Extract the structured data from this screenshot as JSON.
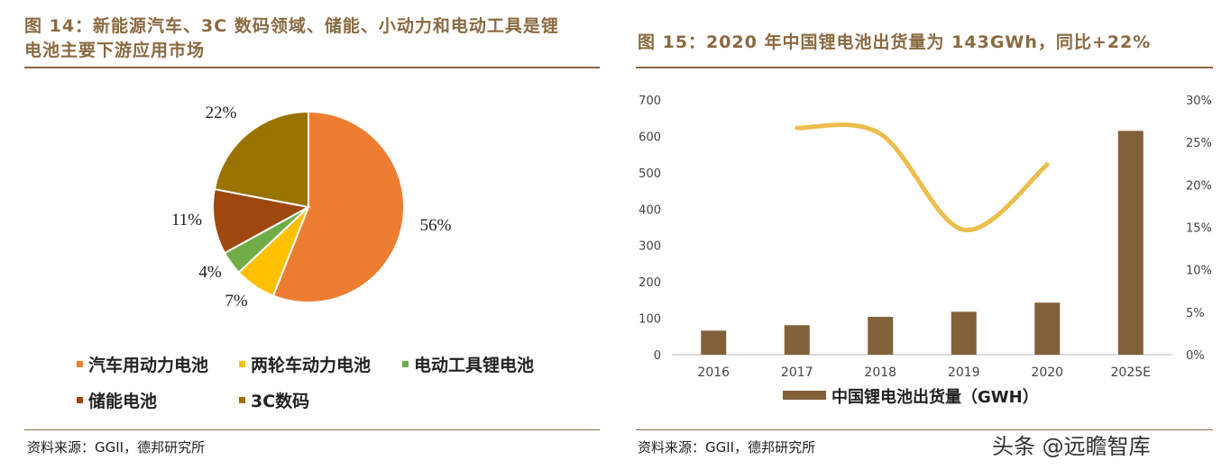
{
  "left": {
    "title_line1": "图 14：新能源汽车、3C 数码领域、储能、小动力和电动工具是锂",
    "title_line2": "电池主要下游应用市场",
    "source": "资料来源：GGII，德邦研究所"
  },
  "right": {
    "title": "图 15：2020 年中国锂电池出货量为 143GWh，同比+22%",
    "source": "资料来源：GGII，德邦研究所"
  },
  "watermark": "头条 @远瞻智库",
  "chart_data": [
    {
      "type": "pie",
      "slices": [
        {
          "label": "汽车用动力电池",
          "value": 56,
          "color": "#ED7D31",
          "text": "56%"
        },
        {
          "label": "两轮车动力电池",
          "value": 7,
          "color": "#FFC000",
          "text": "7%"
        },
        {
          "label": "电动工具锂电池",
          "value": 4,
          "color": "#70AD47",
          "text": "4%"
        },
        {
          "label": "储能电池",
          "value": 11,
          "color": "#9E480E",
          "text": "11%"
        },
        {
          "label": "3C数码",
          "value": 22,
          "color": "#997300",
          "text": "22%"
        }
      ],
      "legend": "bottom"
    },
    {
      "type": "bar",
      "categories": [
        "2016",
        "2017",
        "2018",
        "2019",
        "2020",
        "2025E"
      ],
      "series": [
        {
          "name": "中国锂电池出货量（GWH）",
          "type": "bar",
          "values": [
            66,
            81,
            104,
            118,
            143,
            615
          ],
          "color": "#82613A"
        },
        {
          "type": "line",
          "axis": "right",
          "values": [
            null,
            26.7,
            26,
            14.7,
            22.4,
            null
          ],
          "color": "#EBBE4D"
        }
      ],
      "ylim": [
        0,
        700
      ],
      "yticks": [
        "0",
        "100",
        "200",
        "300",
        "400",
        "500",
        "600",
        "700"
      ],
      "y2lim": [
        0,
        30
      ],
      "y2ticks": [
        "0%",
        "5%",
        "10%",
        "15%",
        "20%",
        "25%",
        "30%"
      ],
      "grid": false,
      "legend": "bottom"
    }
  ]
}
